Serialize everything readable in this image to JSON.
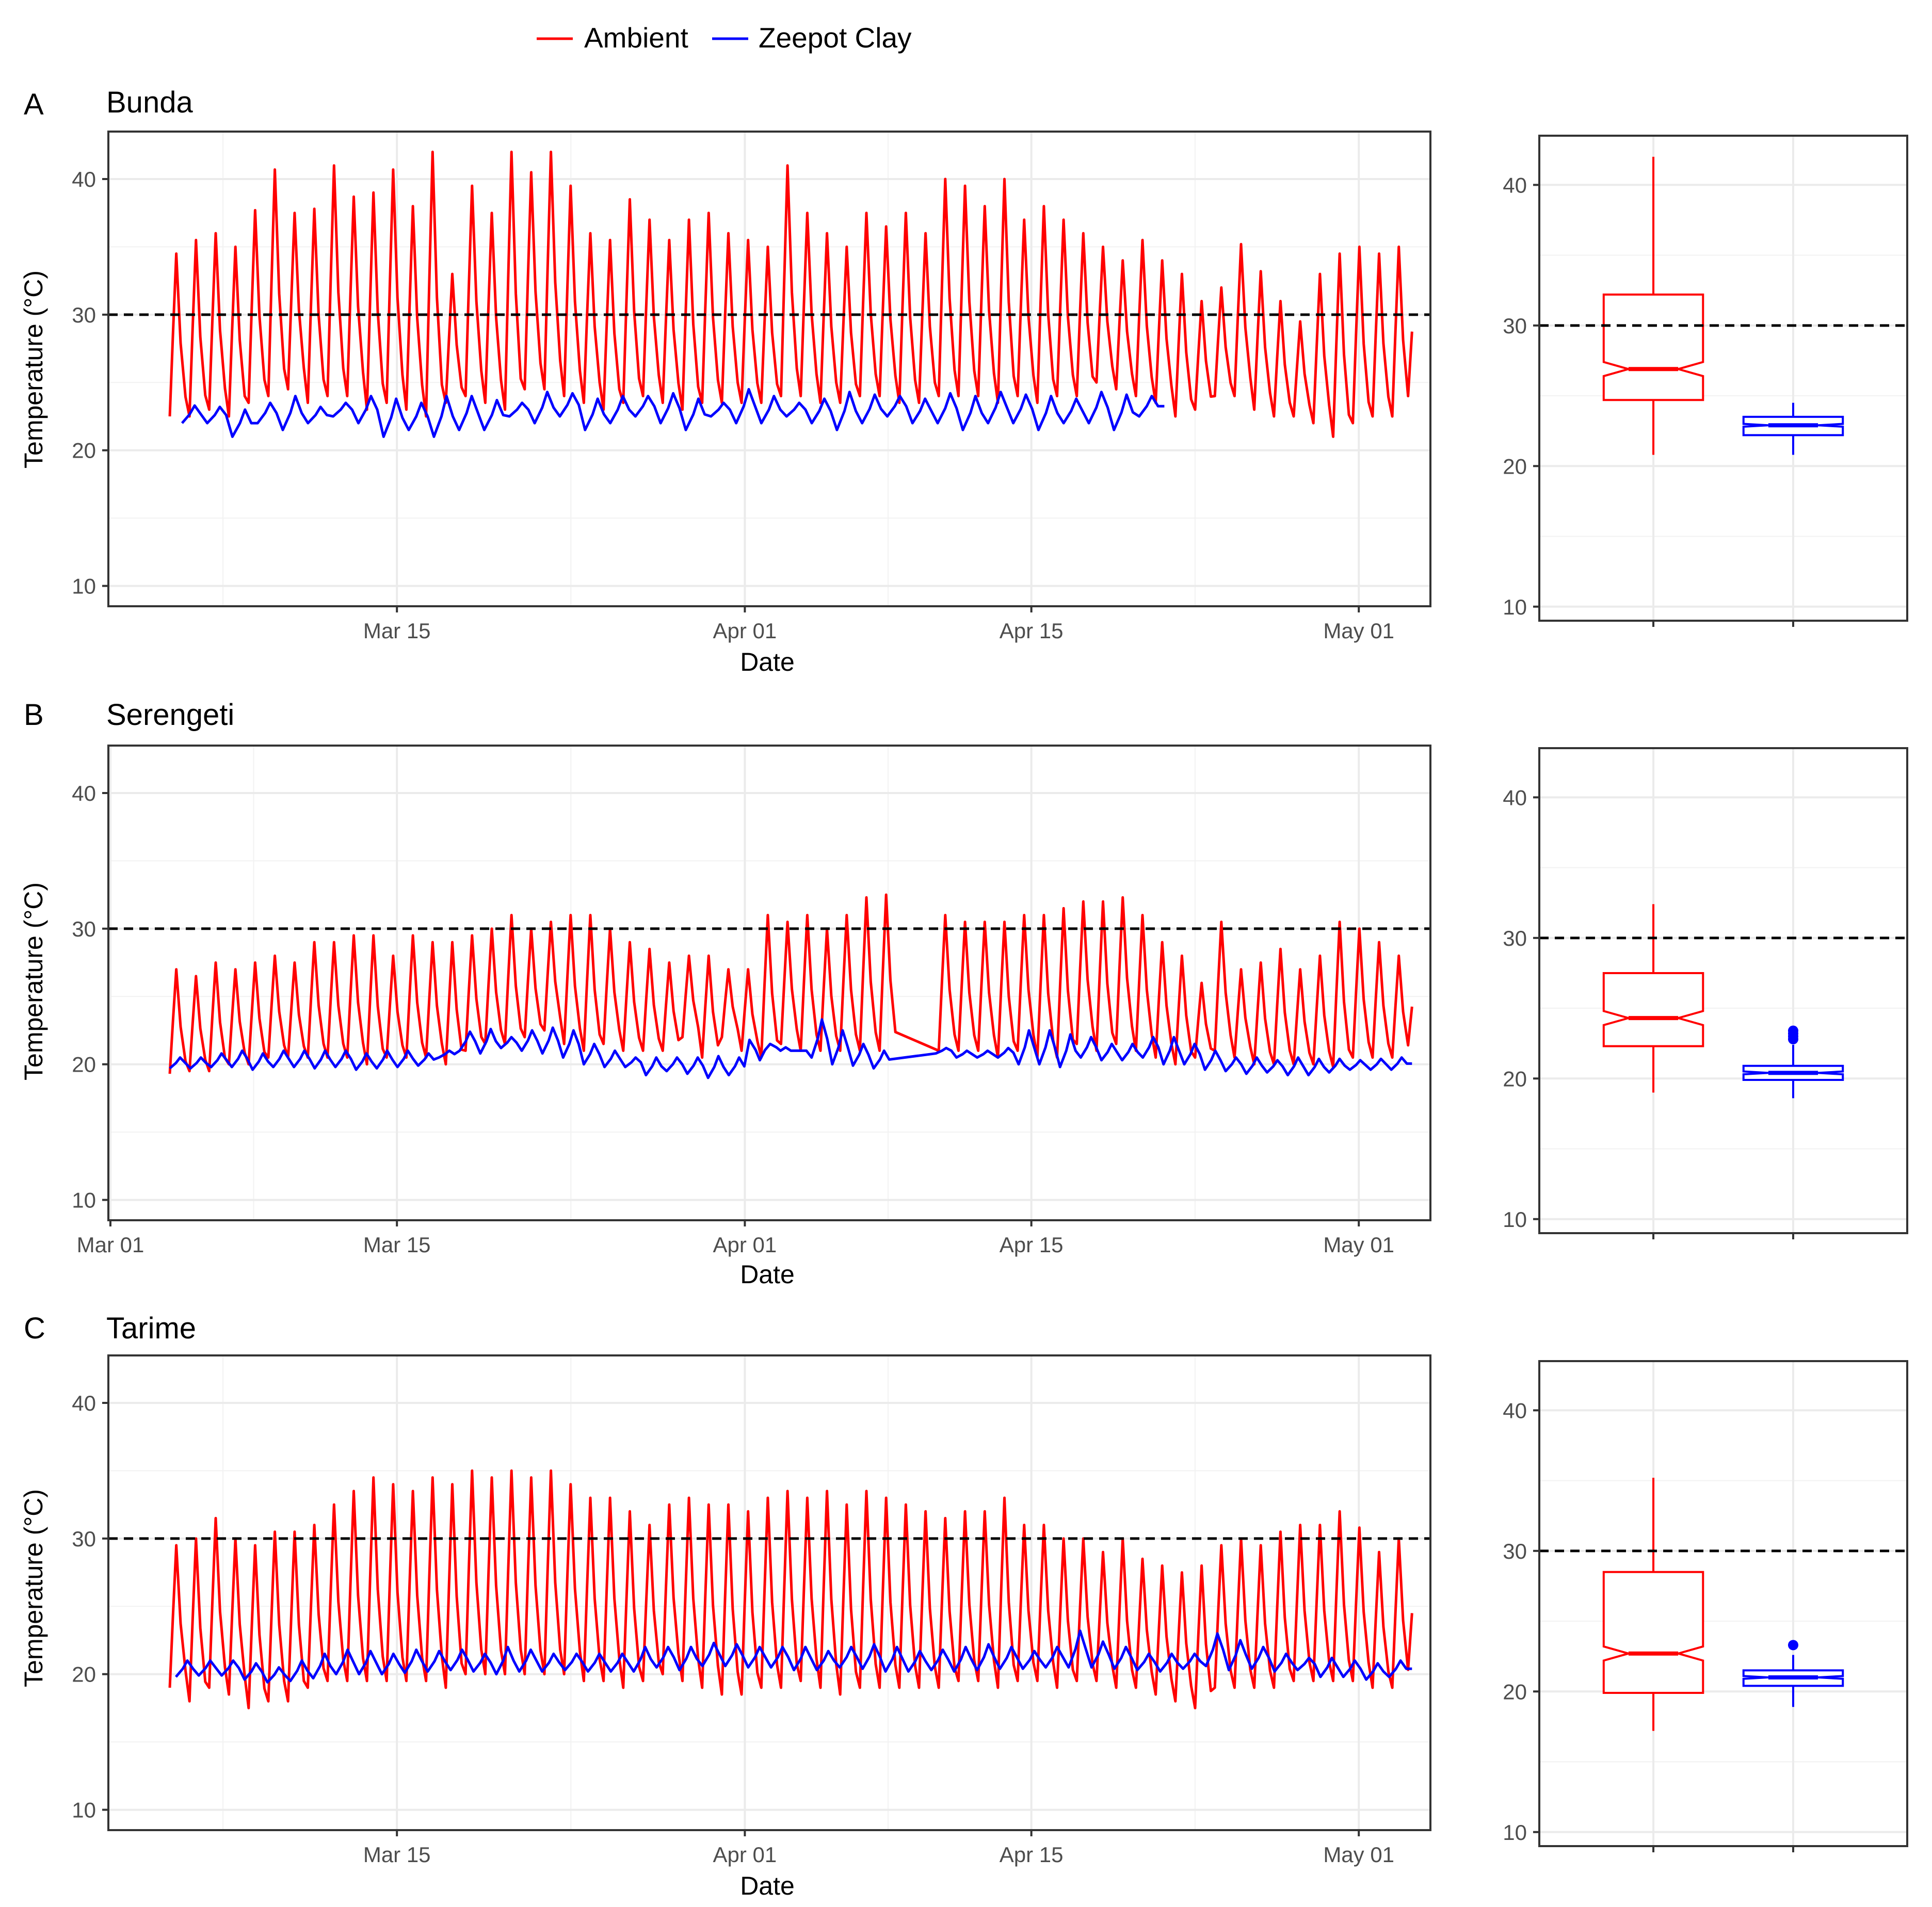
{
  "legend": {
    "position": "top-center",
    "items": [
      {
        "label": "Ambient",
        "color": "#ff0000"
      },
      {
        "label": "Zeepot Clay",
        "color": "#0000ff"
      }
    ]
  },
  "colors": {
    "ambient": "#ff0000",
    "zeepot": "#0000ff",
    "threshold": "#000000"
  },
  "panels": [
    {
      "letter": "A",
      "title": "Bunda"
    },
    {
      "letter": "B",
      "title": "Serengeti"
    },
    {
      "letter": "C",
      "title": "Tarime"
    }
  ],
  "chart_data": [
    {
      "type": "line",
      "panel": "A",
      "title": "Bunda",
      "xlabel": "Date",
      "ylabel": "Temperature (°C)",
      "x_unit": "day of year (Mar 01 = 0)",
      "xlim": [
        -0.1,
        64.5
      ],
      "ylim": [
        8.5,
        43.5
      ],
      "x_ticks": [
        {
          "value": 14,
          "label": "Mar 15"
        },
        {
          "value": 31,
          "label": "Apr 01"
        },
        {
          "value": 45,
          "label": "Apr 15"
        },
        {
          "value": 61,
          "label": "May 01"
        }
      ],
      "y_ticks": [
        10,
        20,
        30,
        40
      ],
      "threshold": 30,
      "grid": true,
      "series": [
        {
          "name": "Ambient",
          "color": "#ff0000",
          "start": 2.9,
          "end": 63.6,
          "peaks": [
            34.5,
            35.5,
            36,
            35,
            37.7,
            40.7,
            37.5,
            37.8,
            41,
            38.7,
            39,
            40.7,
            38,
            42,
            33,
            39.5,
            37.5,
            42,
            40.5,
            42,
            39.5,
            36,
            35.5,
            38.5,
            37,
            35.5,
            37,
            37.5,
            36,
            35.5,
            35,
            41,
            37.5,
            36,
            35,
            37.5,
            36.5,
            37.5,
            36,
            40,
            39.5,
            38,
            40,
            37,
            38,
            37,
            36,
            35,
            34,
            35.5,
            34,
            33,
            31,
            32,
            35.2,
            33.2,
            31,
            29.5,
            33,
            34.5,
            35,
            34.5,
            35
          ],
          "troughs": [
            22.5,
            22.5,
            23,
            22.5,
            23.5,
            24,
            24.5,
            23.5,
            24,
            24,
            23,
            23.5,
            23,
            22.5,
            23.5,
            24,
            23.5,
            23,
            24.5,
            24.5,
            24,
            23.5,
            23,
            23.5,
            24,
            23.5,
            23,
            23.5,
            23.5,
            23.5,
            23.5,
            24,
            24,
            23.5,
            23.5,
            24,
            24,
            23.5,
            23.5,
            24,
            24,
            24,
            23.5,
            24,
            23.5,
            24,
            24,
            25,
            24.5,
            24,
            23.5,
            22.5,
            23,
            24,
            24,
            23,
            22.5,
            22.5,
            22,
            21,
            22,
            22.5,
            22.5
          ]
        },
        {
          "name": "Zeepot Clay",
          "color": "#0000ff",
          "start": 3.5,
          "end": 51.5,
          "peaks": [
            23.3,
            23.2,
            23,
            23.5,
            24,
            23.2,
            23.5,
            24,
            23.8,
            23.5,
            24,
            24,
            23.7,
            23.5,
            24.3,
            24.2,
            23.8,
            24,
            24,
            24.2,
            23.8,
            23.5,
            24.5,
            24,
            23.5,
            23.8,
            24.3,
            24.1,
            24,
            23.8,
            24.2,
            24,
            24.3,
            24.1,
            24,
            23.8,
            24.3,
            24.1,
            24
          ],
          "troughs": [
            22,
            22,
            21,
            22,
            21.5,
            22,
            22.5,
            22,
            21,
            21.5,
            21,
            21.5,
            21.5,
            22.5,
            22,
            22.5,
            21.5,
            22,
            22.5,
            22,
            21.5,
            22.5,
            22,
            22,
            22.5,
            22,
            21.5,
            22,
            22.5,
            22,
            22,
            21.5,
            22,
            22,
            21.5,
            22,
            22,
            21.5,
            22.5
          ]
        }
      ],
      "box": {
        "ylim": [
          9,
          43.5
        ],
        "threshold": 30,
        "groups": [
          {
            "name": "Ambient",
            "color": "#ff0000",
            "min": 20.8,
            "q1": 24.7,
            "median": 26.9,
            "q3": 32.2,
            "max": 42,
            "notch": [
              26.4,
              27.4
            ],
            "outliers": []
          },
          {
            "name": "Zeepot Clay",
            "color": "#0000ff",
            "min": 20.8,
            "q1": 22.2,
            "median": 22.9,
            "q3": 23.5,
            "max": 24.5,
            "notch": [
              22.8,
              23.0
            ],
            "outliers": []
          }
        ]
      }
    },
    {
      "type": "line",
      "panel": "B",
      "title": "Serengeti",
      "xlabel": "Date",
      "ylabel": "Temperature (°C)",
      "x_unit": "day of year (Mar 01 = 0)",
      "xlim": [
        -0.1,
        64.5
      ],
      "ylim": [
        8.5,
        43.5
      ],
      "x_ticks": [
        {
          "value": 0,
          "label": "Mar 01"
        },
        {
          "value": 14,
          "label": "Mar 15"
        },
        {
          "value": 31,
          "label": "Apr 01"
        },
        {
          "value": 45,
          "label": "Apr 15"
        },
        {
          "value": 61,
          "label": "May 01"
        }
      ],
      "y_ticks": [
        10,
        20,
        30,
        40
      ],
      "threshold": 30,
      "grid": true,
      "gap": {
        "from": 37.8,
        "to": 39.8
      },
      "series": [
        {
          "name": "Ambient",
          "color": "#ff0000",
          "start": 2.9,
          "end": 63.6,
          "peaks": [
            27,
            26.5,
            27.5,
            27,
            27.5,
            28,
            27.5,
            29,
            29,
            29.5,
            29.5,
            28,
            29.5,
            29,
            29,
            29.5,
            30,
            31,
            30,
            30.5,
            31,
            31,
            30,
            29,
            28.5,
            27.5,
            28,
            28,
            27,
            27,
            31,
            30.5,
            31,
            30,
            31,
            32.3,
            32.5,
            32.4,
            30.5,
            31,
            30.5,
            30.5,
            30.5,
            31,
            31,
            31.5,
            32,
            32,
            32.3,
            31,
            29,
            28,
            26,
            30.5,
            27,
            27.5,
            28.5,
            27,
            28,
            30.5,
            30,
            29,
            28
          ],
          "troughs": [
            19.3,
            19.5,
            19.5,
            20,
            20,
            20.5,
            20.5,
            20.5,
            20.5,
            20.5,
            20,
            20.5,
            20.5,
            20.5,
            20,
            21,
            21.5,
            21.5,
            22,
            22.5,
            21.5,
            21,
            21.5,
            21,
            21,
            21,
            22,
            20.5,
            22,
            21,
            20.5,
            21.5,
            21,
            21,
            21,
            21,
            21,
            22,
            20.5,
            21,
            21,
            21,
            20.5,
            21,
            20.5,
            20.5,
            21.5,
            21,
            21.5,
            21,
            20.5,
            20,
            20.5,
            21,
            20.5,
            20,
            20,
            20,
            20,
            19.8,
            20.5,
            20.5,
            20.5
          ]
        },
        {
          "name": "Zeepot Clay",
          "color": "#0000ff",
          "start": 2.9,
          "end": 63.6,
          "peaks": [
            20.5,
            20.5,
            20.8,
            21,
            20.8,
            21,
            21,
            21,
            21,
            20.8,
            21,
            21,
            20.8,
            21,
            22.4,
            22.6,
            22,
            22.5,
            22.7,
            22.5,
            21.5,
            21,
            20.5,
            20.5,
            20.5,
            20.5,
            20.6,
            20.5,
            20.3,
            21,
            21,
            23.3,
            22.5,
            21.5,
            21,
            21.5,
            21,
            21.2,
            21,
            21,
            21.2,
            22.5,
            22.5,
            22.2,
            22,
            21.5,
            21.5,
            22,
            22,
            21.5,
            21,
            20.5,
            20.5,
            20.3,
            20.5,
            20.4,
            20.4,
            20.3,
            20.4,
            20.5
          ],
          "troughs": [
            19.7,
            19.7,
            19.8,
            19.8,
            19.6,
            19.8,
            19.8,
            19.7,
            19.8,
            19.6,
            19.7,
            19.8,
            19.9,
            20.5,
            21,
            20.8,
            21.2,
            21,
            20.8,
            20.5,
            20,
            19.8,
            19.8,
            19.2,
            19.5,
            19.3,
            19,
            19.2,
            21.8,
            21.5,
            21,
            20.5,
            20,
            19.9,
            19.7,
            19.4,
            19.5,
            20.8,
            20.5,
            20.5,
            20.5,
            20,
            20,
            19.8,
            20.5,
            20.3,
            20.3,
            20.5,
            20,
            20,
            19.6,
            19.5,
            19.3,
            19.4,
            19.2,
            19.2,
            19.4,
            19.6,
            19.6,
            19.6
          ]
        }
      ],
      "box": {
        "ylim": [
          9,
          43.5
        ],
        "threshold": 30,
        "groups": [
          {
            "name": "Ambient",
            "color": "#ff0000",
            "min": 19,
            "q1": 22.3,
            "median": 24.3,
            "q3": 27.5,
            "max": 32.4,
            "notch": [
              23.8,
              24.8
            ],
            "outliers": []
          },
          {
            "name": "Zeepot Clay",
            "color": "#0000ff",
            "min": 18.6,
            "q1": 19.9,
            "median": 20.4,
            "q3": 20.9,
            "max": 22.4,
            "notch": [
              20.3,
              20.5
            ],
            "outliers": [
              22.8,
              23.0,
              23.2,
              23.4
            ]
          }
        ]
      }
    },
    {
      "type": "line",
      "panel": "C",
      "title": "Tarime",
      "xlabel": "Date",
      "ylabel": "Temperature (°C)",
      "x_unit": "day of year (Mar 01 = 0)",
      "xlim": [
        -0.1,
        64.5
      ],
      "ylim": [
        8.5,
        43.5
      ],
      "x_ticks": [
        {
          "value": 14,
          "label": "Mar 15"
        },
        {
          "value": 31,
          "label": "Apr 01"
        },
        {
          "value": 45,
          "label": "Apr 15"
        },
        {
          "value": 61,
          "label": "May 01"
        }
      ],
      "y_ticks": [
        10,
        20,
        30,
        40
      ],
      "threshold": 30,
      "grid": true,
      "series": [
        {
          "name": "Ambient",
          "color": "#ff0000",
          "start": 2.9,
          "end": 63.6,
          "peaks": [
            29.5,
            30,
            31.5,
            30,
            29.5,
            30.5,
            30.5,
            31,
            32.5,
            33.5,
            34.5,
            34,
            33.5,
            34.5,
            34,
            35,
            34.5,
            35,
            34.5,
            35,
            34,
            33,
            33,
            32,
            31,
            32.5,
            33,
            32.5,
            32.5,
            32,
            33,
            33.5,
            33,
            33.5,
            32.5,
            33.5,
            33,
            32.5,
            32,
            31.5,
            32,
            32,
            33,
            31,
            31,
            30,
            30,
            29,
            30,
            28.5,
            28,
            27.5,
            28,
            29.5,
            30,
            29.5,
            30.5,
            31,
            31,
            32,
            30.8,
            29,
            30
          ],
          "troughs": [
            19,
            18,
            19,
            18.5,
            17.5,
            18,
            18,
            19,
            19.5,
            19.5,
            19.5,
            19.5,
            19.5,
            19.5,
            19,
            20,
            20,
            20,
            20,
            20,
            20,
            19.5,
            19.5,
            19,
            19.5,
            20,
            19.5,
            19,
            18.5,
            18.5,
            19,
            19,
            19.5,
            19,
            18.5,
            19,
            19,
            19,
            19,
            19,
            19.5,
            19.5,
            19,
            19.5,
            19.5,
            19,
            19.5,
            19.5,
            19,
            19,
            18.5,
            18,
            17.5,
            19,
            19,
            19,
            19,
            19.5,
            19.5,
            19.5,
            19.5,
            19,
            19
          ]
        },
        {
          "name": "Zeepot Clay",
          "color": "#0000ff",
          "start": 3.2,
          "end": 63.6,
          "peaks": [
            21,
            21,
            21,
            20.8,
            20.5,
            21,
            21.5,
            21.8,
            21.7,
            21.5,
            21.8,
            21.7,
            21.8,
            21.5,
            22,
            21.8,
            21.5,
            21.5,
            21.5,
            21.5,
            22,
            22,
            22,
            22.3,
            22.2,
            22,
            22,
            22,
            21.7,
            22,
            22.2,
            22,
            21.7,
            21.8,
            22,
            22.2,
            22,
            21.7,
            22,
            23.2,
            22.4,
            22,
            21.5,
            21.5,
            21.5,
            23,
            22.5,
            22,
            21.5,
            21.2,
            21.2,
            21,
            20.8,
            21
          ],
          "troughs": [
            19.8,
            19.9,
            19.9,
            19.6,
            19.4,
            19.5,
            19.7,
            20,
            20,
            20,
            20.1,
            20.2,
            20.3,
            20.2,
            20,
            20.2,
            20.2,
            20.3,
            20.2,
            20.2,
            20.2,
            20.5,
            20.3,
            20.6,
            20.6,
            20.5,
            20.5,
            20.3,
            20.3,
            20.5,
            20.4,
            20.2,
            20.2,
            20.3,
            20.2,
            20.3,
            20.4,
            20.4,
            20.5,
            20.5,
            20.5,
            20.4,
            20.3,
            20.2,
            20.4,
            20.6,
            20.3,
            20.4,
            20.2,
            20.3,
            19.8,
            19.8,
            19.6,
            19.8
          ]
        }
      ],
      "box": {
        "ylim": [
          9,
          43.5
        ],
        "threshold": 30,
        "groups": [
          {
            "name": "Ambient",
            "color": "#ff0000",
            "min": 17.2,
            "q1": 19.9,
            "median": 22.7,
            "q3": 28.5,
            "max": 35.2,
            "notch": [
              22.2,
              23.2
            ],
            "outliers": []
          },
          {
            "name": "Zeepot Clay",
            "color": "#0000ff",
            "min": 18.9,
            "q1": 20.4,
            "median": 21.0,
            "q3": 21.5,
            "max": 22.6,
            "notch": [
              20.9,
              21.1
            ],
            "outliers": [
              23.3
            ]
          }
        ]
      }
    }
  ]
}
